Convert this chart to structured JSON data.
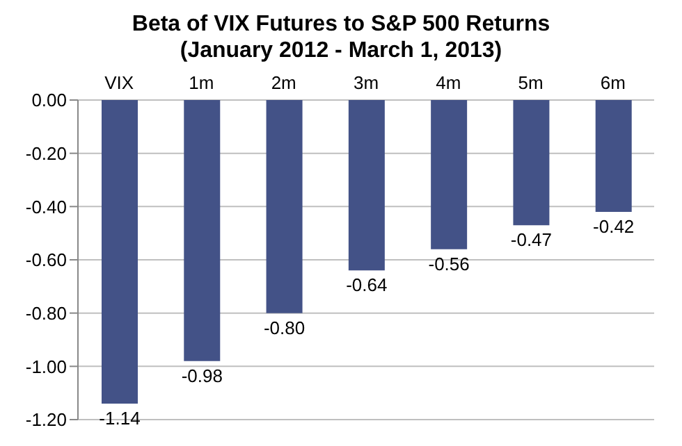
{
  "chart_data": {
    "type": "bar",
    "title": "Beta of VIX Futures to S&P 500 Returns",
    "subtitle": "(January 2012 - March 1, 2013)",
    "categories": [
      "VIX",
      "1m",
      "2m",
      "3m",
      "4m",
      "5m",
      "6m"
    ],
    "values": [
      -1.14,
      -0.98,
      -0.8,
      -0.64,
      -0.56,
      -0.47,
      -0.42
    ],
    "value_labels": [
      "-1.14",
      "-0.98",
      "-0.80",
      "-0.64",
      "-0.56",
      "-0.47",
      "-0.42"
    ],
    "color": "#435287",
    "ylim": [
      -1.2,
      0
    ],
    "yticks": [
      {
        "value": 0,
        "label": "0.00"
      },
      {
        "value": -0.2,
        "label": "-0.20"
      },
      {
        "value": -0.4,
        "label": "-0.40"
      },
      {
        "value": -0.6,
        "label": "-0.60"
      },
      {
        "value": -0.8,
        "label": "-0.80"
      },
      {
        "value": -1,
        "label": "-1.00"
      },
      {
        "value": -1.2,
        "label": "-1.20"
      }
    ],
    "grid": "y"
  }
}
